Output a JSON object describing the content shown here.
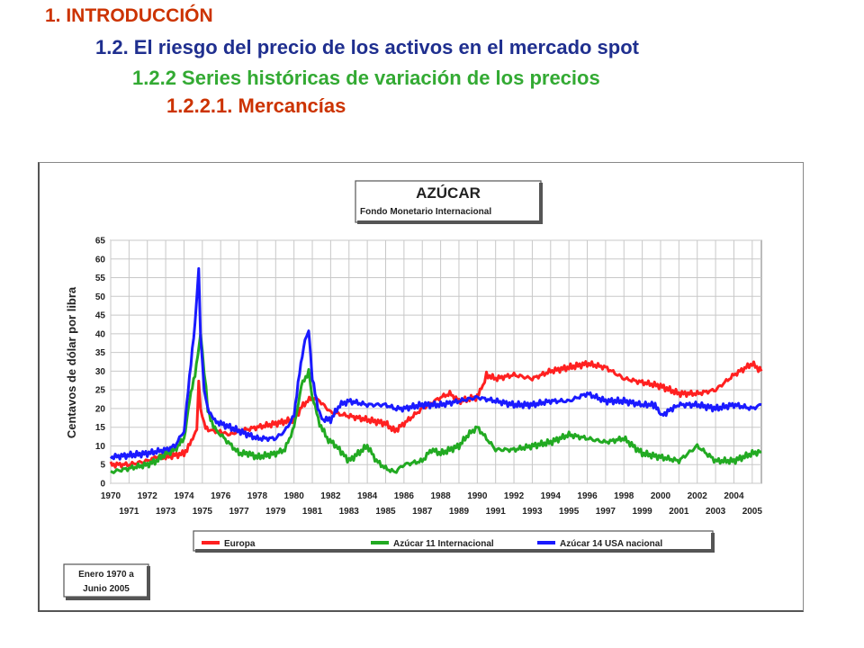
{
  "headings": {
    "h1": "1. INTRODUCCIÓN",
    "h2": "1.2. El riesgo del precio de los activos en el mercado spot",
    "h3": "1.2.2 Series históricas de variación de los precios",
    "h4": "1.2.2.1. Mercancías"
  },
  "colors": {
    "h1": "#cc3300",
    "h2": "#1f2f8f",
    "h3": "#33aa33",
    "h4": "#cc3300",
    "europa": "#ff2020",
    "int11": "#22aa22",
    "usa14": "#1a1aff",
    "grid": "#c8c8c8"
  },
  "chart_data": {
    "type": "line",
    "title": "AZÚCAR",
    "subtitle": "Fondo Monetario Internacional",
    "ylabel": "Centavos de dólar por libra",
    "xlabel": "",
    "ylim": [
      0,
      65
    ],
    "yticks": [
      0,
      5,
      10,
      15,
      20,
      25,
      30,
      35,
      40,
      45,
      50,
      55,
      60,
      65
    ],
    "xlim": [
      1970,
      2005.5
    ],
    "xticks_top": [
      "1970",
      "1972",
      "1974",
      "1976",
      "1978",
      "1980",
      "1982",
      "1984",
      "1986",
      "1988",
      "1990",
      "1992",
      "1994",
      "1996",
      "1998",
      "2000",
      "2002",
      "2004"
    ],
    "xticks_bottom": [
      "1971",
      "1973",
      "1975",
      "1977",
      "1979",
      "1981",
      "1983",
      "1985",
      "1987",
      "1989",
      "1991",
      "1993",
      "1995",
      "1997",
      "1999",
      "2001",
      "2003",
      "2005"
    ],
    "grid": true,
    "legend_position": "bottom",
    "note": [
      "Enero 1970 a",
      "Junio 2005"
    ],
    "series": [
      {
        "name": "Europa",
        "x": [
          1970,
          1971,
          1972,
          1972.5,
          1973,
          1973.5,
          1974,
          1974.4,
          1974.7,
          1974.8,
          1974.9,
          1975.1,
          1975.4,
          1975.8,
          1976.5,
          1977,
          1978,
          1979,
          1980,
          1980.5,
          1981,
          1981.4,
          1982,
          1983,
          1984,
          1985,
          1985.5,
          1986,
          1987,
          1988,
          1988.5,
          1989,
          1990,
          1990.3,
          1990.5,
          1991,
          1992,
          1993,
          1994,
          1995,
          1996,
          1997,
          1998,
          1999,
          2000,
          2001,
          2002,
          2003,
          2004,
          2005,
          2005.5
        ],
        "y": [
          5,
          5,
          6,
          7,
          7,
          7.5,
          8,
          11,
          15,
          27,
          20,
          16,
          14,
          14,
          13,
          14,
          15,
          16,
          17,
          21,
          23,
          22,
          19,
          18,
          17,
          16,
          14,
          16,
          20,
          23,
          24,
          22,
          23,
          26,
          29,
          28,
          29,
          28,
          30,
          31,
          32,
          31,
          28,
          27,
          26,
          24,
          24,
          25,
          29,
          32,
          30
        ]
      },
      {
        "name": "Azúcar 11 Internacional",
        "x": [
          1970,
          1971,
          1972,
          1972.5,
          1973,
          1973.5,
          1974,
          1974.3,
          1974.6,
          1974.9,
          1975.1,
          1975.3,
          1975.6,
          1976,
          1977,
          1977.5,
          1978,
          1979,
          1979.5,
          1980,
          1980.4,
          1980.8,
          1981,
          1981.4,
          1981.8,
          1982.3,
          1983,
          1983.5,
          1984,
          1984.5,
          1985,
          1985.5,
          1986,
          1987,
          1987.5,
          1988,
          1989,
          1989.5,
          1990,
          1990.5,
          1991,
          1992,
          1993,
          1994,
          1995,
          1996,
          1997,
          1998,
          1999,
          2000,
          2001,
          2002,
          2003,
          2004,
          2005,
          2005.5
        ],
        "y": [
          3,
          4,
          5,
          6,
          8,
          9,
          12,
          22,
          29,
          40,
          30,
          20,
          15,
          13,
          8,
          8,
          7,
          8,
          9,
          15,
          26,
          30,
          23,
          16,
          12,
          10,
          6,
          8,
          10,
          6,
          4,
          3,
          5,
          6,
          9,
          8,
          10,
          13,
          15,
          12,
          9,
          9,
          10,
          11,
          13,
          12,
          11,
          12,
          8,
          7,
          6,
          10,
          6,
          6,
          8,
          8.5
        ]
      },
      {
        "name": "Azúcar 14 USA nacional",
        "x": [
          1970,
          1971,
          1972,
          1972.5,
          1973,
          1973.5,
          1974,
          1974.3,
          1974.6,
          1974.8,
          1974.9,
          1975.1,
          1975.3,
          1975.6,
          1976,
          1976.5,
          1977,
          1978,
          1979,
          1979.5,
          1980,
          1980.3,
          1980.6,
          1980.8,
          1981,
          1981.3,
          1981.6,
          1982,
          1982.5,
          1983,
          1984,
          1985,
          1985.5,
          1986,
          1987,
          1988,
          1989,
          1990,
          1991,
          1992,
          1993,
          1994,
          1995,
          1996,
          1997,
          1998,
          1999,
          1999.7,
          2000,
          2000.3,
          2001,
          2002,
          2003,
          2004,
          2005,
          2005.5
        ],
        "y": [
          7,
          7.5,
          8,
          8.5,
          9,
          10,
          14,
          28,
          43,
          57,
          40,
          25,
          20,
          17,
          16,
          15,
          14,
          12,
          12,
          14,
          18,
          30,
          38,
          41,
          28,
          20,
          17,
          17,
          21,
          22,
          21,
          21,
          20,
          20,
          21,
          21,
          22,
          23,
          22,
          21,
          21,
          22,
          22,
          24,
          22,
          22,
          21,
          21,
          18,
          19,
          21,
          21,
          20,
          21,
          20,
          21
        ]
      }
    ]
  }
}
